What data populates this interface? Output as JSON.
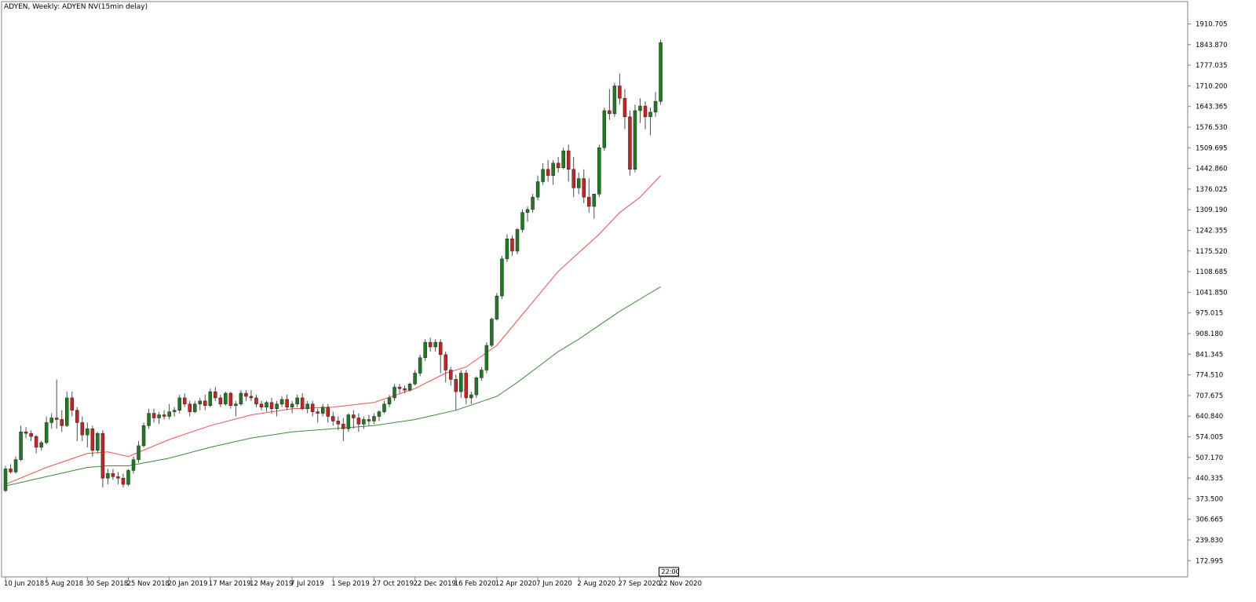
{
  "header": {
    "title": "ADYEN, Weekly:  ADYEN NV(15min delay)"
  },
  "timeframe_marker": "22:00",
  "colors": {
    "bull": "#1e7b1e",
    "bear": "#d01f1f",
    "wick": "#4d4d4d",
    "ma_fast": "#ee5050",
    "ma_slow": "#3a8a3a",
    "axis": "#808080"
  },
  "chart_data": {
    "type": "candlestick",
    "title": "ADYEN, Weekly:  ADYEN NV(15min delay)",
    "ylim": [
      130,
      1960
    ],
    "y_ticks": [
      "1910.705",
      "1843.870",
      "1777.035",
      "1710.200",
      "1643.365",
      "1576.530",
      "1509.695",
      "1442.860",
      "1376.025",
      "1309.190",
      "1242.355",
      "1175.520",
      "1108.685",
      "1041.850",
      "975.015",
      "908.180",
      "841.345",
      "774.510",
      "707.675",
      "640.840",
      "574.005",
      "507.170",
      "440.335",
      "373.500",
      "306.665",
      "239.830",
      "172.995"
    ],
    "x_ticks": [
      {
        "label": "10 Jun 2018",
        "index": 0
      },
      {
        "label": "5 Aug 2018",
        "index": 8
      },
      {
        "label": "30 Sep 2018",
        "index": 16
      },
      {
        "label": "25 Nov 2018",
        "index": 24
      },
      {
        "label": "20 Jan 2019",
        "index": 32
      },
      {
        "label": "17 Mar 2019",
        "index": 40
      },
      {
        "label": "12 May 2019",
        "index": 48
      },
      {
        "label": "7 Jul 2019",
        "index": 56
      },
      {
        "label": "1 Sep 2019",
        "index": 64
      },
      {
        "label": "27 Oct 2019",
        "index": 72
      },
      {
        "label": "22 Dec 2019",
        "index": 80
      },
      {
        "label": "16 Feb 2020",
        "index": 88
      },
      {
        "label": "12 Apr 2020",
        "index": 96
      },
      {
        "label": "7 Jun 2020",
        "index": 104
      },
      {
        "label": "2 Aug 2020",
        "index": 112
      },
      {
        "label": "27 Sep 2020",
        "index": 120
      },
      {
        "label": "22 Nov 2020",
        "index": 128
      }
    ],
    "candles": [
      [
        400,
        480,
        395,
        470
      ],
      [
        470,
        485,
        455,
        460
      ],
      [
        460,
        510,
        455,
        500
      ],
      [
        500,
        610,
        495,
        590
      ],
      [
        590,
        605,
        570,
        585
      ],
      [
        585,
        595,
        560,
        575
      ],
      [
        575,
        580,
        520,
        540
      ],
      [
        540,
        560,
        530,
        555
      ],
      [
        555,
        640,
        550,
        620
      ],
      [
        620,
        650,
        600,
        635
      ],
      [
        635,
        760,
        600,
        630
      ],
      [
        630,
        660,
        590,
        610
      ],
      [
        610,
        720,
        605,
        700
      ],
      [
        700,
        720,
        640,
        660
      ],
      [
        660,
        670,
        560,
        620
      ],
      [
        620,
        640,
        560,
        580
      ],
      [
        580,
        620,
        540,
        600
      ],
      [
        600,
        610,
        510,
        530
      ],
      [
        530,
        590,
        520,
        585
      ],
      [
        585,
        595,
        410,
        440
      ],
      [
        440,
        470,
        420,
        455
      ],
      [
        455,
        470,
        435,
        445
      ],
      [
        445,
        460,
        420,
        440
      ],
      [
        440,
        455,
        410,
        420
      ],
      [
        420,
        470,
        415,
        465
      ],
      [
        465,
        510,
        455,
        500
      ],
      [
        500,
        560,
        490,
        545
      ],
      [
        545,
        620,
        540,
        610
      ],
      [
        610,
        665,
        600,
        650
      ],
      [
        650,
        665,
        620,
        635
      ],
      [
        635,
        655,
        615,
        645
      ],
      [
        645,
        660,
        630,
        640
      ],
      [
        640,
        680,
        630,
        655
      ],
      [
        655,
        670,
        640,
        660
      ],
      [
        660,
        710,
        650,
        700
      ],
      [
        700,
        715,
        670,
        680
      ],
      [
        680,
        690,
        640,
        655
      ],
      [
        655,
        690,
        650,
        680
      ],
      [
        680,
        700,
        660,
        690
      ],
      [
        690,
        710,
        660,
        675
      ],
      [
        675,
        730,
        670,
        720
      ],
      [
        720,
        735,
        690,
        700
      ],
      [
        700,
        710,
        670,
        680
      ],
      [
        680,
        720,
        675,
        715
      ],
      [
        715,
        720,
        665,
        675
      ],
      [
        675,
        690,
        640,
        680
      ],
      [
        680,
        725,
        675,
        715
      ],
      [
        715,
        725,
        690,
        705
      ],
      [
        705,
        725,
        690,
        700
      ],
      [
        700,
        710,
        670,
        680
      ],
      [
        680,
        690,
        660,
        670
      ],
      [
        670,
        690,
        655,
        685
      ],
      [
        685,
        700,
        650,
        665
      ],
      [
        665,
        690,
        640,
        680
      ],
      [
        680,
        705,
        670,
        695
      ],
      [
        695,
        710,
        660,
        670
      ],
      [
        670,
        690,
        650,
        680
      ],
      [
        680,
        710,
        670,
        700
      ],
      [
        700,
        715,
        660,
        665
      ],
      [
        665,
        690,
        650,
        680
      ],
      [
        680,
        690,
        640,
        655
      ],
      [
        655,
        665,
        620,
        650
      ],
      [
        650,
        680,
        640,
        670
      ],
      [
        670,
        680,
        620,
        640
      ],
      [
        640,
        655,
        610,
        625
      ],
      [
        625,
        640,
        595,
        615
      ],
      [
        615,
        635,
        560,
        600
      ],
      [
        600,
        650,
        590,
        645
      ],
      [
        645,
        660,
        600,
        635
      ],
      [
        635,
        650,
        590,
        615
      ],
      [
        615,
        640,
        600,
        630
      ],
      [
        630,
        645,
        610,
        625
      ],
      [
        625,
        650,
        615,
        640
      ],
      [
        640,
        660,
        625,
        655
      ],
      [
        655,
        690,
        650,
        680
      ],
      [
        680,
        710,
        670,
        700
      ],
      [
        700,
        745,
        690,
        735
      ],
      [
        735,
        745,
        715,
        730
      ],
      [
        730,
        740,
        715,
        725
      ],
      [
        725,
        750,
        720,
        745
      ],
      [
        745,
        790,
        740,
        780
      ],
      [
        780,
        840,
        770,
        830
      ],
      [
        830,
        890,
        820,
        880
      ],
      [
        880,
        895,
        850,
        865
      ],
      [
        865,
        890,
        850,
        880
      ],
      [
        880,
        890,
        780,
        840
      ],
      [
        840,
        850,
        750,
        790
      ],
      [
        790,
        800,
        740,
        760
      ],
      [
        760,
        775,
        660,
        720
      ],
      [
        720,
        790,
        700,
        780
      ],
      [
        780,
        790,
        680,
        700
      ],
      [
        700,
        720,
        680,
        710
      ],
      [
        710,
        770,
        700,
        765
      ],
      [
        765,
        800,
        755,
        790
      ],
      [
        790,
        880,
        780,
        870
      ],
      [
        870,
        960,
        865,
        955
      ],
      [
        955,
        1040,
        950,
        1030
      ],
      [
        1030,
        1160,
        1020,
        1150
      ],
      [
        1150,
        1230,
        1140,
        1215
      ],
      [
        1215,
        1225,
        1160,
        1175
      ],
      [
        1175,
        1250,
        1165,
        1245
      ],
      [
        1245,
        1310,
        1235,
        1300
      ],
      [
        1300,
        1320,
        1270,
        1310
      ],
      [
        1310,
        1360,
        1300,
        1350
      ],
      [
        1350,
        1420,
        1340,
        1400
      ],
      [
        1400,
        1460,
        1390,
        1440
      ],
      [
        1440,
        1470,
        1400,
        1420
      ],
      [
        1420,
        1470,
        1390,
        1460
      ],
      [
        1460,
        1480,
        1430,
        1445
      ],
      [
        1445,
        1510,
        1440,
        1500
      ],
      [
        1500,
        1520,
        1400,
        1440
      ],
      [
        1440,
        1480,
        1350,
        1380
      ],
      [
        1380,
        1430,
        1360,
        1410
      ],
      [
        1410,
        1440,
        1330,
        1350
      ],
      [
        1350,
        1410,
        1300,
        1320
      ],
      [
        1320,
        1360,
        1280,
        1360
      ],
      [
        1360,
        1520,
        1350,
        1510
      ],
      [
        1510,
        1640,
        1500,
        1630
      ],
      [
        1630,
        1700,
        1600,
        1620
      ],
      [
        1620,
        1720,
        1610,
        1710
      ],
      [
        1710,
        1750,
        1650,
        1670
      ],
      [
        1670,
        1700,
        1570,
        1610
      ],
      [
        1610,
        1630,
        1420,
        1440
      ],
      [
        1440,
        1650,
        1430,
        1630
      ],
      [
        1630,
        1670,
        1590,
        1645
      ],
      [
        1645,
        1660,
        1570,
        1610
      ],
      [
        1610,
        1640,
        1550,
        1625
      ],
      [
        1625,
        1690,
        1610,
        1660
      ],
      [
        1660,
        1860,
        1650,
        1850
      ]
    ],
    "ma_fast": {
      "x": [
        0,
        8,
        16,
        20,
        24,
        32,
        40,
        48,
        56,
        64,
        72,
        80,
        86,
        90,
        96,
        100,
        104,
        108,
        112,
        116,
        120,
        124,
        128
      ],
      "y": [
        420,
        475,
        520,
        525,
        510,
        565,
        610,
        645,
        665,
        670,
        685,
        730,
        780,
        800,
        870,
        950,
        1030,
        1110,
        1170,
        1230,
        1300,
        1350,
        1420
      ]
    },
    "ma_slow": {
      "x": [
        0,
        8,
        16,
        20,
        24,
        32,
        40,
        48,
        56,
        64,
        72,
        80,
        88,
        96,
        100,
        104,
        108,
        112,
        116,
        120,
        124,
        128
      ],
      "y": [
        415,
        445,
        475,
        480,
        480,
        505,
        540,
        570,
        590,
        600,
        610,
        630,
        660,
        705,
        750,
        800,
        850,
        890,
        935,
        980,
        1020,
        1060
      ]
    }
  }
}
